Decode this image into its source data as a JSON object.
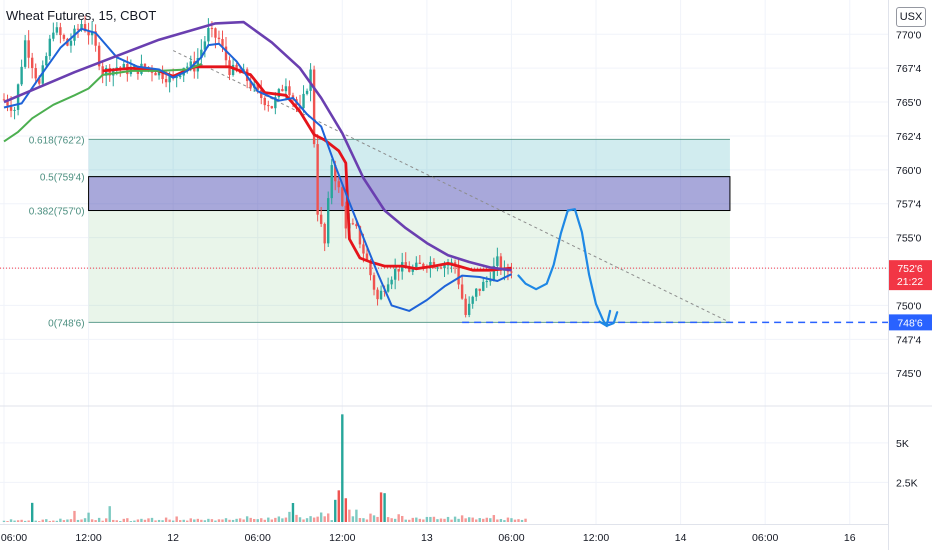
{
  "title": "Wheat Futures, 15, CBOT",
  "currency": "USX",
  "colors": {
    "up": "#26a69a",
    "down": "#ef5350",
    "ma_red": "#e5141b",
    "ma_green": "#4caf50",
    "ma_blue": "#1e63d8",
    "ma_purple": "#6a3fb0",
    "price_label": "#f23645",
    "target_label": "#2962ff",
    "drawing": "#1e88e5"
  },
  "chart_data": {
    "type": "candlestick",
    "y_axis": {
      "range": [
        744.5,
        771.2
      ],
      "tick_labels": [
        "770'0",
        "767'4",
        "765'0",
        "762'4",
        "760'0",
        "757'4",
        "755'0",
        "752'6",
        "750'0",
        "747'4",
        "745'0"
      ],
      "tick_values": [
        770,
        767.5,
        765,
        762.5,
        760,
        757.5,
        755,
        752.75,
        750,
        747.5,
        745
      ]
    },
    "x_axis": {
      "tick_labels": [
        "06:00",
        "12:00",
        "12",
        "06:00",
        "12:00",
        "13",
        "06:00",
        "12:00",
        "14",
        "06:00",
        "16"
      ],
      "tick_positions": [
        0,
        24,
        48,
        72,
        96,
        120,
        144,
        168,
        192,
        216,
        240
      ]
    },
    "current_price": {
      "label": "752'6",
      "countdown": "21:22",
      "value": 752.75
    },
    "target_price": {
      "label": "748'6",
      "value": 748.75
    },
    "fibonacci": [
      {
        "label": "0.618(762'2)",
        "value": 762.25
      },
      {
        "label": "0.5(759'4)",
        "value": 759.5
      },
      {
        "label": "0.382(757'0)",
        "value": 757.0
      },
      {
        "label": "0(748'6)",
        "value": 748.75
      }
    ],
    "volume_axis": {
      "range": [
        0,
        7200
      ],
      "tick_labels": [
        "5K",
        "2.5K"
      ],
      "tick_values": [
        5000,
        2500
      ]
    },
    "anchors": [
      [
        0,
        765.2
      ],
      [
        3,
        764.5
      ],
      [
        6,
        769.5
      ],
      [
        10,
        766.2
      ],
      [
        14,
        770.5
      ],
      [
        18,
        769.2
      ],
      [
        22,
        770.8
      ],
      [
        25,
        769.8
      ],
      [
        28,
        767.2
      ],
      [
        32,
        767.6
      ],
      [
        36,
        767.3
      ],
      [
        40,
        767.6
      ],
      [
        44,
        767.2
      ],
      [
        48,
        766.6
      ],
      [
        51,
        767.7
      ],
      [
        54,
        767.6
      ],
      [
        58,
        770.2
      ],
      [
        61,
        769.6
      ],
      [
        64,
        767.4
      ],
      [
        68,
        767.0
      ],
      [
        72,
        765.6
      ],
      [
        76,
        764.7
      ],
      [
        80,
        766.5
      ],
      [
        84,
        764.2
      ],
      [
        87,
        767.2
      ],
      [
        89,
        757.0
      ],
      [
        91,
        754.5
      ],
      [
        93,
        760.5
      ],
      [
        95,
        758.5
      ],
      [
        97,
        756.0
      ],
      [
        100,
        755.5
      ],
      [
        103,
        753.2
      ],
      [
        106,
        750.4
      ],
      [
        109,
        752.0
      ],
      [
        112,
        752.8
      ],
      [
        116,
        752.6
      ],
      [
        120,
        753.2
      ],
      [
        124,
        753.1
      ],
      [
        128,
        753.0
      ],
      [
        131,
        749.3
      ],
      [
        134,
        751.0
      ],
      [
        137,
        751.8
      ],
      [
        140,
        753.2
      ],
      [
        142,
        752.4
      ],
      [
        144,
        752.75
      ]
    ],
    "volume": [
      80,
      60,
      170,
      90,
      110,
      140,
      70,
      95,
      1210,
      85,
      55,
      150,
      180,
      65,
      90,
      75,
      210,
      120,
      160,
      180,
      700,
      130,
      160,
      240,
      590,
      170,
      120,
      260,
      80,
      230,
      1000,
      130,
      110,
      60,
      200,
      240,
      60,
      90,
      160,
      200,
      140,
      230,
      260,
      100,
      130,
      110,
      280,
      150,
      90,
      350,
      120,
      140,
      90,
      230,
      160,
      200,
      140,
      110,
      200,
      180,
      90,
      170,
      160,
      240,
      140,
      130,
      200,
      230,
      160,
      360,
      260,
      190,
      180,
      240,
      140,
      280,
      160,
      260,
      350,
      230,
      280,
      640,
      1200,
      450,
      300,
      160,
      240,
      370,
      280,
      340,
      600,
      360,
      540,
      120,
      1400,
      2000,
      6800,
      1500,
      780,
      360,
      780,
      250,
      240,
      160,
      530,
      420,
      320,
      1870,
      1820,
      310,
      240,
      200,
      490,
      380,
      150,
      140,
      260,
      280,
      200,
      160,
      320,
      320,
      330,
      180,
      220,
      200,
      320,
      150,
      340,
      200,
      420,
      230,
      300,
      280,
      160,
      250,
      200,
      270,
      240,
      440,
      160,
      190,
      120,
      280,
      240,
      150,
      180,
      130,
      210
    ],
    "moving_averages": [
      {
        "color_key": "ma_red",
        "points": [
          [
            28,
            767.3
          ],
          [
            36,
            767.5
          ],
          [
            44,
            767.3
          ],
          [
            48,
            766.9
          ],
          [
            54,
            767.6
          ],
          [
            64,
            767.6
          ],
          [
            70,
            767.0
          ],
          [
            74,
            765.7
          ],
          [
            80,
            765.5
          ],
          [
            84,
            764.3
          ],
          [
            88,
            762.6
          ],
          [
            91,
            762.2
          ],
          [
            95,
            761.4
          ],
          [
            97,
            760.5
          ],
          [
            98,
            754.9
          ],
          [
            101,
            753.5
          ],
          [
            104,
            753.2
          ],
          [
            108,
            752.9
          ],
          [
            113,
            752.9
          ],
          [
            117,
            752.7
          ],
          [
            122,
            752.9
          ],
          [
            126,
            753.1
          ],
          [
            129,
            752.9
          ],
          [
            133,
            752.6
          ],
          [
            138,
            752.6
          ],
          [
            144,
            752.75
          ]
        ]
      },
      {
        "color_key": "ma_green",
        "points": [
          [
            0,
            762.1
          ],
          [
            4,
            762.8
          ],
          [
            8,
            763.8
          ],
          [
            14,
            764.8
          ],
          [
            20,
            765.5
          ],
          [
            24,
            766.0
          ],
          [
            28,
            767.0
          ],
          [
            36,
            767.3
          ],
          [
            44,
            767.3
          ],
          [
            52,
            767.4
          ],
          [
            56,
            767.8
          ]
        ]
      },
      {
        "color_key": "ma_blue",
        "points": [
          [
            0,
            764.6
          ],
          [
            5,
            764.9
          ],
          [
            10,
            766.8
          ],
          [
            16,
            769.0
          ],
          [
            22,
            770.4
          ],
          [
            26,
            770.1
          ],
          [
            32,
            768.3
          ],
          [
            38,
            767.6
          ],
          [
            44,
            767.4
          ],
          [
            48,
            766.8
          ],
          [
            52,
            767.3
          ],
          [
            56,
            768.3
          ],
          [
            58,
            769.2
          ],
          [
            61,
            769.3
          ],
          [
            66,
            768.0
          ],
          [
            72,
            765.8
          ],
          [
            78,
            765.1
          ],
          [
            82,
            765.3
          ],
          [
            86,
            764.1
          ],
          [
            90,
            763.2
          ],
          [
            94,
            760.3
          ],
          [
            98,
            757.6
          ],
          [
            102,
            755.0
          ],
          [
            106,
            752.4
          ],
          [
            110,
            750.0
          ],
          [
            115,
            749.6
          ],
          [
            120,
            750.4
          ],
          [
            125,
            751.4
          ],
          [
            130,
            752.2
          ],
          [
            135,
            752.1
          ],
          [
            140,
            751.8
          ],
          [
            144,
            752.3
          ]
        ]
      },
      {
        "color_key": "ma_purple",
        "points": [
          [
            0,
            765.0
          ],
          [
            20,
            767.2
          ],
          [
            44,
            769.6
          ],
          [
            60,
            770.8
          ],
          [
            68,
            770.9
          ],
          [
            76,
            769.4
          ],
          [
            84,
            767.5
          ],
          [
            90,
            765.3
          ],
          [
            96,
            762.7
          ],
          [
            102,
            759.4
          ],
          [
            108,
            757.0
          ],
          [
            114,
            755.7
          ],
          [
            120,
            754.6
          ],
          [
            126,
            753.7
          ],
          [
            132,
            753.2
          ],
          [
            138,
            752.8
          ],
          [
            144,
            752.6
          ]
        ]
      }
    ],
    "dotted_trend": {
      "from": [
        48,
        768.8
      ],
      "to": [
        206,
        748.75
      ]
    },
    "target_line": {
      "from": [
        130,
        748.75
      ],
      "to": [
        246,
        748.75
      ]
    },
    "hand_drawing": [
      [
        146,
        752.2
      ],
      [
        148,
        751.6
      ],
      [
        151,
        751.2
      ],
      [
        154,
        751.6
      ],
      [
        156,
        753.0
      ],
      [
        158,
        755.3
      ],
      [
        160,
        757.0
      ],
      [
        162,
        757.1
      ],
      [
        164,
        755.4
      ],
      [
        166,
        752.3
      ],
      [
        168,
        750.1
      ],
      [
        170,
        748.9
      ],
      [
        171,
        748.5
      ],
      [
        173,
        748.7
      ],
      [
        174,
        749.5
      ]
    ],
    "arrow_head": [
      [
        169,
        748.8
      ],
      [
        171,
        748.5
      ],
      [
        172,
        749.6
      ]
    ],
    "fib_box": {
      "x_start": 24,
      "x_end": 206
    },
    "blackbox": {
      "top": 759.5,
      "bottom": 757.0
    }
  }
}
